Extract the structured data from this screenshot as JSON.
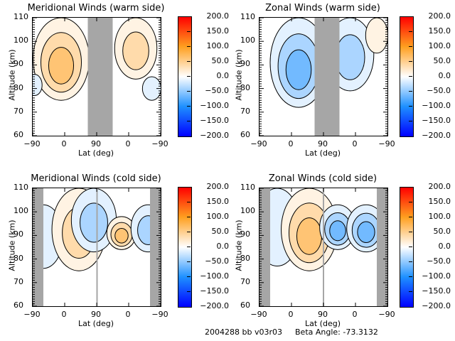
{
  "footer": {
    "id_text": "2004288 bb v03r03",
    "beta_text": "Beta Angle: -73.3132"
  },
  "colorbar": {
    "ticks": [
      "200.0",
      "150.0",
      "100.0",
      "50.0",
      "0.0",
      "−50.0",
      "−100.0",
      "−150.0",
      "−200.0"
    ],
    "range": [
      -200,
      200
    ],
    "colors": {
      "min": "#0000ff",
      "neg_mid": "#1e90ff",
      "zero": "#ffffff",
      "pos_mid": "#ffa020",
      "max": "#ff0000"
    }
  },
  "chart_data": [
    {
      "type": "heatmap",
      "title": "Meridional Winds (warm side)",
      "xlabel": "Lat (deg)",
      "ylabel": "Altitude (km)",
      "xticks": [
        "−90",
        "0",
        "90",
        "0",
        "−90"
      ],
      "yticks": [
        "110",
        "100",
        "90",
        "80",
        "70",
        "60"
      ],
      "ylim": [
        60,
        110
      ],
      "zlim": [
        -200,
        200
      ],
      "no_data_lat_bands": [
        [
          65,
          135
        ]
      ],
      "features": [
        {
          "sign": "positive",
          "peak": 75,
          "lat_center": -10,
          "alt_range": [
            75,
            110
          ]
        },
        {
          "sign": "positive",
          "peak": 60,
          "lat_center": 200,
          "alt_range": [
            84,
            110
          ]
        },
        {
          "sign": "negative",
          "peak": -40,
          "lat_center": 245,
          "alt_range": [
            75,
            85
          ]
        },
        {
          "sign": "negative",
          "peak": -25,
          "lat_center": -85,
          "alt_range": [
            77,
            86
          ]
        }
      ]
    },
    {
      "type": "heatmap",
      "title": "Zonal Winds (warm side)",
      "xlabel": "Lat (deg)",
      "ylabel": "Altitude (km)",
      "xticks": [
        "−90",
        "0",
        "90",
        "0",
        "−90"
      ],
      "yticks": [
        "110",
        "100",
        "90",
        "80",
        "70",
        "60"
      ],
      "ylim": [
        60,
        110
      ],
      "zlim": [
        -200,
        200
      ],
      "no_data_lat_bands": [
        [
          65,
          135
        ]
      ],
      "features": [
        {
          "sign": "negative",
          "peak": -90,
          "lat_center": 20,
          "alt_range": [
            72,
            110
          ]
        },
        {
          "sign": "negative",
          "peak": -50,
          "lat_center": 165,
          "alt_range": [
            79,
            110
          ]
        },
        {
          "sign": "positive",
          "peak": 20,
          "lat_center": 240,
          "alt_range": [
            95,
            110
          ]
        }
      ]
    },
    {
      "type": "heatmap",
      "title": "Meridional Winds (cold side)",
      "xlabel": "Lat (deg)",
      "ylabel": "Altitude (km)",
      "xticks": [
        "−90",
        "0",
        "90",
        "0",
        "−90"
      ],
      "yticks": [
        "110",
        "100",
        "90",
        "80",
        "70",
        "60"
      ],
      "ylim": [
        60,
        110
      ],
      "zlim": [
        -200,
        200
      ],
      "no_data_lat_bands": [
        [
          -90,
          -60
        ],
        [
          240,
          270
        ],
        [
          89,
          92
        ]
      ],
      "features": [
        {
          "sign": "negative",
          "peak": -30,
          "lat_center": -60,
          "alt_range": [
            76,
            103
          ]
        },
        {
          "sign": "positive",
          "peak": 60,
          "lat_center": 40,
          "alt_range": [
            75,
            110
          ]
        },
        {
          "sign": "negative",
          "peak": -70,
          "lat_center": 82,
          "alt_range": [
            83,
            110
          ]
        },
        {
          "sign": "positive",
          "peak": 80,
          "lat_center": 160,
          "alt_range": [
            84,
            98
          ]
        },
        {
          "sign": "negative",
          "peak": -60,
          "lat_center": 235,
          "alt_range": [
            83,
            103
          ]
        }
      ]
    },
    {
      "type": "heatmap",
      "title": "Zonal Winds (cold side)",
      "xlabel": "Lat (deg)",
      "ylabel": "Altitude (km)",
      "xticks": [
        "−90",
        "0",
        "90",
        "0",
        "−90"
      ],
      "yticks": [
        "110",
        "100",
        "90",
        "80",
        "70",
        "60"
      ],
      "ylim": [
        60,
        110
      ],
      "zlim": [
        -200,
        200
      ],
      "no_data_lat_bands": [
        [
          -90,
          -60
        ],
        [
          240,
          270
        ],
        [
          88,
          92
        ]
      ],
      "features": [
        {
          "sign": "positive",
          "peak": 40,
          "lat_center": -50,
          "alt_range": [
            85,
            100
          ]
        },
        {
          "sign": "negative",
          "peak": -25,
          "lat_center": -40,
          "alt_range": [
            77,
            110
          ]
        },
        {
          "sign": "positive",
          "peak": 75,
          "lat_center": 50,
          "alt_range": [
            75,
            110
          ]
        },
        {
          "sign": "negative",
          "peak": -80,
          "lat_center": 130,
          "alt_range": [
            84,
            103
          ]
        },
        {
          "sign": "negative",
          "peak": -90,
          "lat_center": 210,
          "alt_range": [
            83,
            103
          ]
        }
      ]
    }
  ]
}
